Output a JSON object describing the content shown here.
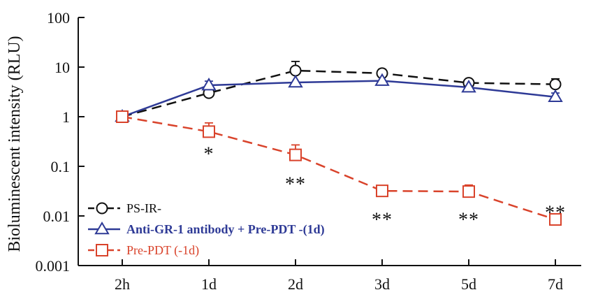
{
  "chart_data": {
    "type": "line",
    "categories": [
      "2h",
      "1d",
      "2d",
      "3d",
      "5d",
      "7d"
    ],
    "ylabel": "Bioluminescent intensity (RLU)",
    "xlabel": "",
    "yscale": "log",
    "ylim": [
      0.001,
      100
    ],
    "yticks": [
      {
        "value": 100,
        "label": "100"
      },
      {
        "value": 10,
        "label": "10"
      },
      {
        "value": 1,
        "label": "1"
      },
      {
        "value": 0.1,
        "label": "0.1"
      },
      {
        "value": 0.01,
        "label": "0.01"
      },
      {
        "value": 0.001,
        "label": "0.001"
      }
    ],
    "grid": false,
    "legend_position": "bottom-left",
    "series": [
      {
        "name": "PS-IR-",
        "color": "#111111",
        "line_style": "dashed",
        "marker": "circle",
        "legend_bold": false,
        "values": [
          1.0,
          3.0,
          8.5,
          7.5,
          4.8,
          4.5
        ],
        "error_upper": [
          null,
          4.2,
          13.0,
          9.0,
          5.5,
          5.8
        ]
      },
      {
        "name": "Anti-GR-1 antibody + Pre-PDT -(1d)",
        "color": "#2e3a96",
        "line_style": "solid",
        "marker": "triangle",
        "legend_bold": true,
        "values": [
          1.0,
          4.3,
          4.9,
          5.3,
          3.9,
          2.5
        ],
        "error_upper": [
          null,
          5.2,
          null,
          null,
          null,
          3.0
        ]
      },
      {
        "name": "Pre-PDT (-1d)",
        "color": "#d9432b",
        "line_style": "dashed",
        "marker": "square",
        "legend_bold": false,
        "values": [
          1.0,
          0.5,
          0.17,
          0.032,
          0.031,
          0.0085
        ],
        "error_upper": [
          null,
          0.75,
          0.27,
          null,
          0.042,
          0.011
        ]
      }
    ],
    "annotations": [
      {
        "category": "1d",
        "text": "*",
        "value": 0.22
      },
      {
        "category": "2d",
        "text": "**",
        "value": 0.055
      },
      {
        "category": "3d",
        "text": "**",
        "value": 0.0105
      },
      {
        "category": "5d",
        "text": "**",
        "value": 0.0105
      },
      {
        "category": "7d",
        "text": "**",
        "value": 0.0145
      }
    ]
  }
}
